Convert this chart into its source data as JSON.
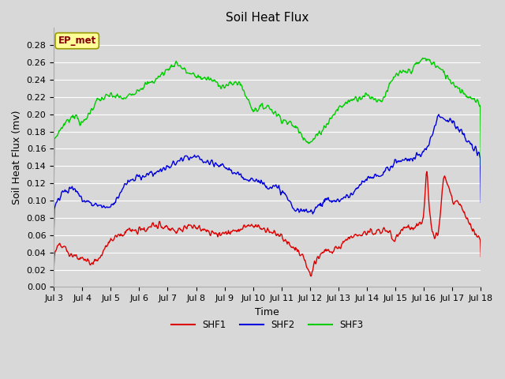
{
  "title": "Soil Heat Flux",
  "xlabel": "Time",
  "ylabel": "Soil Heat Flux (mv)",
  "ylim": [
    0.0,
    0.3
  ],
  "yticks": [
    0.0,
    0.02,
    0.04,
    0.06,
    0.08,
    0.1,
    0.12,
    0.14,
    0.16,
    0.18,
    0.2,
    0.22,
    0.24,
    0.26,
    0.28
  ],
  "x_labels": [
    "Jul 3",
    "Jul 4",
    "Jul 5",
    "Jul 6",
    "Jul 7",
    "Jul 8",
    "Jul 9",
    "Jul 10",
    "Jul 11",
    "Jul 12",
    "Jul 13",
    "Jul 14",
    "Jul 15",
    "Jul 16",
    "Jul 17",
    "Jul 18"
  ],
  "shf1_color": "#dd0000",
  "shf2_color": "#0000dd",
  "shf3_color": "#00cc00",
  "legend_labels": [
    "SHF1",
    "SHF2",
    "SHF3"
  ],
  "annotation_text": "EP_met",
  "annotation_box_color": "#ffff99",
  "annotation_border_color": "#999900",
  "bg_color": "#d8d8d8",
  "plot_bg_color": "#d8d8d8",
  "grid_color": "#ffffff",
  "title_fontsize": 11,
  "axis_label_fontsize": 9,
  "tick_fontsize": 8
}
